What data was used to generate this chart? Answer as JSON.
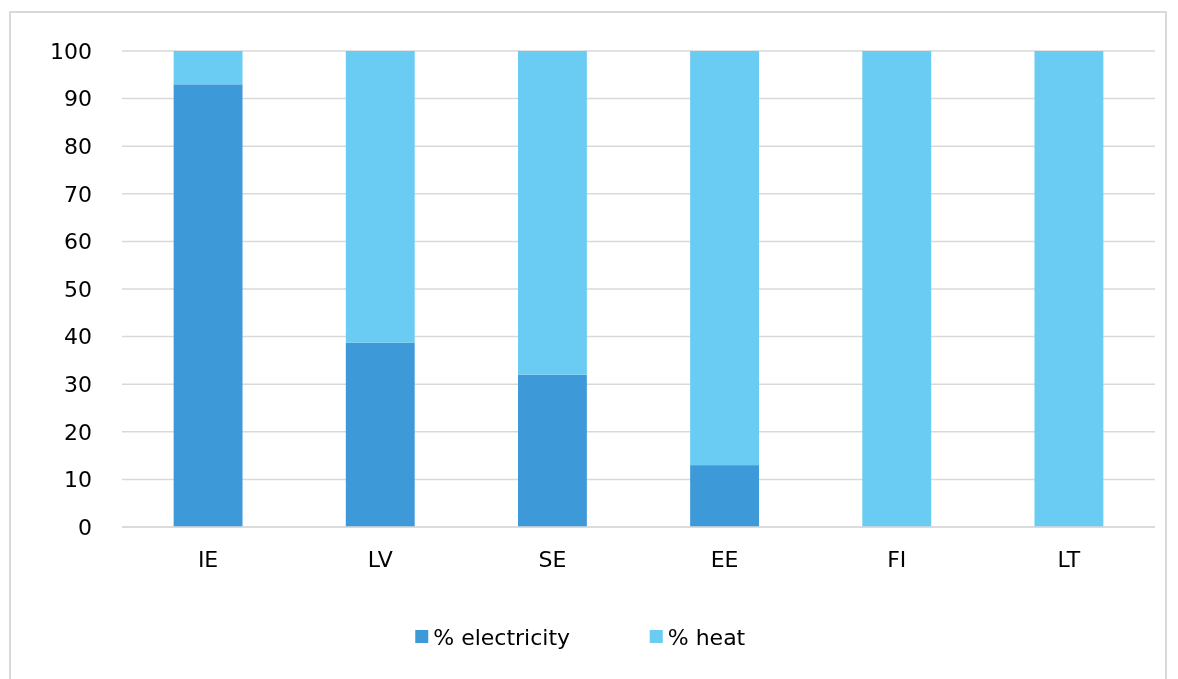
{
  "chart_data": {
    "type": "bar",
    "stacked": true,
    "categories": [
      "IE",
      "LV",
      "SE",
      "EE",
      "FI",
      "LT"
    ],
    "series": [
      {
        "name": "% electricity",
        "color": "#3e99d9",
        "values": [
          93,
          38.7,
          32,
          13,
          0,
          0
        ]
      },
      {
        "name": "% heat",
        "color": "#6acbf3",
        "values": [
          7,
          61.3,
          68,
          87,
          100,
          100
        ]
      }
    ],
    "ylim": [
      0,
      100
    ],
    "yticks": [
      0,
      10,
      20,
      30,
      40,
      50,
      60,
      70,
      80,
      90,
      100
    ],
    "grid": "y",
    "legend": "bottom"
  }
}
